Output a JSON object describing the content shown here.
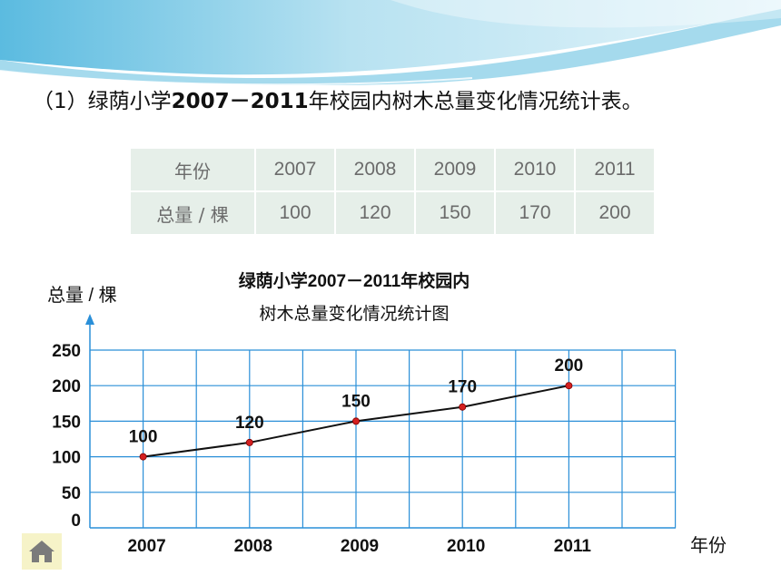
{
  "heading": {
    "prefix": "（1）绿荫小学",
    "years": "2007－2011",
    "suffix": "年校园内树木总量变化情况统计表。"
  },
  "table": {
    "row_headers": [
      "年份",
      "总量 / 棵"
    ],
    "years": [
      "2007",
      "2008",
      "2009",
      "2010",
      "2011"
    ],
    "totals": [
      "100",
      "120",
      "150",
      "170",
      "200"
    ]
  },
  "chart_data": {
    "type": "line",
    "title_line1": "绿荫小学2007－2011年校园内",
    "title_line2": "树木总量变化情况统计图",
    "ylabel": "总量 / 棵",
    "xlabel": "年份",
    "categories": [
      "2007",
      "2008",
      "2009",
      "2010",
      "2011"
    ],
    "values": [
      100,
      120,
      150,
      170,
      200
    ],
    "yticks": [
      0,
      50,
      100,
      150,
      200,
      250
    ],
    "ylim": [
      0,
      250
    ],
    "grid": true,
    "line_color": "#111111",
    "marker_color": "#d42020",
    "grid_color": "#2a8fd8"
  },
  "colors": {
    "banner_light": "#d8eff7",
    "banner_mid": "#6cc1e0",
    "table_bg": "#e6efe9",
    "home_button_bg": "#f6f3c8"
  },
  "icons": {
    "home": "home-icon"
  }
}
